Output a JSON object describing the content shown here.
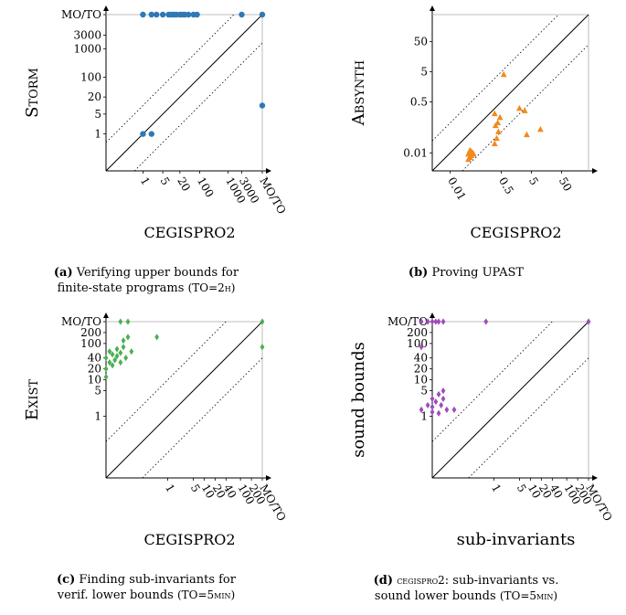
{
  "chart_data": [
    {
      "type": "scatter",
      "panel": "a",
      "xlabel": "CEGISPRO2",
      "ylabel": "Storm",
      "x_ticks": [
        "1",
        "5",
        "20",
        "100",
        "1000",
        "3000",
        "MO/TO"
      ],
      "y_ticks": [
        "MO/TO",
        "3000",
        "1000",
        "100",
        "20",
        "5",
        "1"
      ],
      "scale": "log",
      "diagonal": "solid y=x, dotted offsets",
      "marker": "circle",
      "color": "#2e78b5",
      "points": [
        {
          "x": 1,
          "y": 1
        },
        {
          "x": 2,
          "y": 1
        },
        {
          "x": 1,
          "y": "MO/TO"
        },
        {
          "x": 2,
          "y": "MO/TO"
        },
        {
          "x": 3,
          "y": "MO/TO"
        },
        {
          "x": 5,
          "y": "MO/TO"
        },
        {
          "x": 8,
          "y": "MO/TO"
        },
        {
          "x": 10,
          "y": "MO/TO"
        },
        {
          "x": 12,
          "y": "MO/TO"
        },
        {
          "x": 15,
          "y": "MO/TO"
        },
        {
          "x": 20,
          "y": "MO/TO"
        },
        {
          "x": 25,
          "y": "MO/TO"
        },
        {
          "x": 30,
          "y": "MO/TO"
        },
        {
          "x": 40,
          "y": "MO/TO"
        },
        {
          "x": 60,
          "y": "MO/TO"
        },
        {
          "x": 80,
          "y": "MO/TO"
        },
        {
          "x": 3000,
          "y": "MO/TO"
        },
        {
          "x": "MO/TO",
          "y": "MO/TO"
        },
        {
          "x": "MO/TO",
          "y": 10
        }
      ]
    },
    {
      "type": "scatter",
      "panel": "b",
      "xlabel": "CEGISPRO2",
      "ylabel": "Absynth",
      "x_ticks": [
        "0.01",
        "0.5",
        "5",
        "50"
      ],
      "y_ticks": [
        "50",
        "5",
        "0.5",
        "0.01"
      ],
      "scale": "log",
      "diagonal": "solid y=x, dotted offsets",
      "marker": "triangle",
      "color": "#f28a1c",
      "points": [
        {
          "x": 0.04,
          "y": 0.006
        },
        {
          "x": 0.045,
          "y": 0.007
        },
        {
          "x": 0.05,
          "y": 0.008
        },
        {
          "x": 0.04,
          "y": 0.009
        },
        {
          "x": 0.055,
          "y": 0.01
        },
        {
          "x": 0.05,
          "y": 0.011
        },
        {
          "x": 0.06,
          "y": 0.009
        },
        {
          "x": 0.045,
          "y": 0.012
        },
        {
          "x": 0.3,
          "y": 0.02
        },
        {
          "x": 0.35,
          "y": 0.03
        },
        {
          "x": 0.4,
          "y": 0.05
        },
        {
          "x": 0.32,
          "y": 0.08
        },
        {
          "x": 0.38,
          "y": 0.1
        },
        {
          "x": 0.45,
          "y": 0.15
        },
        {
          "x": 0.3,
          "y": 0.2
        },
        {
          "x": 0.6,
          "y": 4
        },
        {
          "x": 2,
          "y": 0.3
        },
        {
          "x": 3,
          "y": 0.25
        },
        {
          "x": 3.5,
          "y": 0.04
        },
        {
          "x": 10,
          "y": 0.06
        }
      ]
    },
    {
      "type": "scatter",
      "panel": "c",
      "xlabel": "CEGISPRO2",
      "ylabel": "Exist",
      "x_ticks": [
        "1",
        "5",
        "10",
        "20",
        "40",
        "100",
        "200",
        "MO/TO"
      ],
      "y_ticks": [
        "MO/TO",
        "200",
        "100",
        "40",
        "20",
        "10",
        "5",
        "1"
      ],
      "scale": "log",
      "diagonal": "solid y=x, dotted offsets",
      "marker": "diamond",
      "color": "#4caf50",
      "points": [
        {
          "x": 0.02,
          "y": 12
        },
        {
          "x": 0.02,
          "y": 20
        },
        {
          "x": 0.025,
          "y": 30
        },
        {
          "x": 0.02,
          "y": 40
        },
        {
          "x": 0.03,
          "y": 25
        },
        {
          "x": 0.03,
          "y": 50
        },
        {
          "x": 0.035,
          "y": 35
        },
        {
          "x": 0.025,
          "y": 60
        },
        {
          "x": 0.04,
          "y": 45
        },
        {
          "x": 0.04,
          "y": 70
        },
        {
          "x": 0.05,
          "y": 30
        },
        {
          "x": 0.05,
          "y": 55
        },
        {
          "x": 0.06,
          "y": 80
        },
        {
          "x": 0.07,
          "y": 40
        },
        {
          "x": 0.06,
          "y": 120
        },
        {
          "x": 0.08,
          "y": 150
        },
        {
          "x": 0.1,
          "y": 60
        },
        {
          "x": 0.05,
          "y": "MO/TO"
        },
        {
          "x": 0.08,
          "y": "MO/TO"
        },
        {
          "x": 0.5,
          "y": 150
        },
        {
          "x": "MO/TO",
          "y": "MO/TO"
        },
        {
          "x": "MO/TO",
          "y": 80
        }
      ]
    },
    {
      "type": "scatter",
      "panel": "d",
      "xlabel": "sub-invariants",
      "ylabel": "sound bounds",
      "x_ticks": [
        "1",
        "5",
        "10",
        "20",
        "40",
        "100",
        "200",
        "MO/TO"
      ],
      "y_ticks": [
        "MO/TO",
        "200",
        "100",
        "40",
        "20",
        "10",
        "5",
        "1"
      ],
      "scale": "log",
      "diagonal": "solid y=x, dotted offsets",
      "marker": "diamond",
      "color": "#9c4fb8",
      "points": [
        {
          "x": 0.01,
          "y": "MO/TO"
        },
        {
          "x": 0.015,
          "y": "MO/TO"
        },
        {
          "x": 0.02,
          "y": "MO/TO"
        },
        {
          "x": 0.025,
          "y": "MO/TO"
        },
        {
          "x": 0.03,
          "y": "MO/TO"
        },
        {
          "x": 0.04,
          "y": "MO/TO"
        },
        {
          "x": 0.6,
          "y": "MO/TO"
        },
        {
          "x": 0.01,
          "y": 80
        },
        {
          "x": 0.01,
          "y": 1.5
        },
        {
          "x": 0.015,
          "y": 2
        },
        {
          "x": 0.02,
          "y": 1.8
        },
        {
          "x": 0.02,
          "y": 3
        },
        {
          "x": 0.025,
          "y": 2.5
        },
        {
          "x": 0.03,
          "y": 4
        },
        {
          "x": 0.035,
          "y": 2
        },
        {
          "x": 0.04,
          "y": 5
        },
        {
          "x": 0.04,
          "y": 3
        },
        {
          "x": 0.05,
          "y": 1.5
        },
        {
          "x": 0.03,
          "y": 1.2
        },
        {
          "x": 0.02,
          "y": 1.3
        },
        {
          "x": 0.08,
          "y": 1.5
        },
        {
          "x": "MO/TO",
          "y": "MO/TO"
        }
      ]
    }
  ],
  "captions": [
    {
      "letter": "(a)",
      "text1": "Verifying upper bounds for",
      "text2": "finite-state programs",
      "extra": "(TO=2h)"
    },
    {
      "letter": "(b)",
      "text1": "Proving UPAST",
      "text2": "",
      "extra": ""
    },
    {
      "letter": "(c)",
      "text1": "Finding sub-invariants for",
      "text2": "verif. lower bounds",
      "extra": "(TO=5min)"
    },
    {
      "letter": "(d)",
      "text1_sc": "cegispro2",
      "text1": ": sub-invariants vs.",
      "text2": "sound lower bounds",
      "extra": "(TO=5min)"
    }
  ]
}
